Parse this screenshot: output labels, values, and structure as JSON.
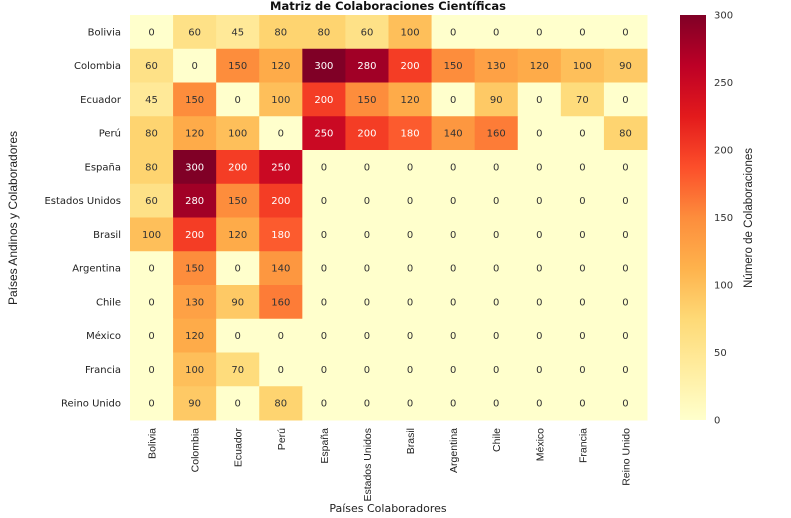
{
  "chart_data": {
    "type": "heatmap",
    "title": "Matriz de Colaboraciones Científicas",
    "xlabel": "Países Colaboradores",
    "ylabel": "Países Andinos y Colaboradores",
    "colorbar_label": "Número de Colaboraciones",
    "colormap": "YlOrRd",
    "vmin": 0,
    "vmax": 300,
    "colorbar_ticks": [
      0,
      50,
      100,
      150,
      200,
      250,
      300
    ],
    "colorbar_stops": [
      "#ffffcc",
      "#ffeda0",
      "#fed976",
      "#feb24c",
      "#fd8d3c",
      "#fc4e2a",
      "#e31a1c",
      "#bd0026",
      "#800026"
    ],
    "x_categories": [
      "Bolivia",
      "Colombia",
      "Ecuador",
      "Perú",
      "España",
      "Estados Unidos",
      "Brasil",
      "Argentina",
      "Chile",
      "México",
      "Francia",
      "Reino Unido"
    ],
    "y_categories": [
      "Bolivia",
      "Colombia",
      "Ecuador",
      "Perú",
      "España",
      "Estados Unidos",
      "Brasil",
      "Argentina",
      "Chile",
      "México",
      "Francia",
      "Reino Unido"
    ],
    "values": [
      [
        0,
        60,
        45,
        80,
        80,
        60,
        100,
        0,
        0,
        0,
        0,
        0
      ],
      [
        60,
        0,
        150,
        120,
        300,
        280,
        200,
        150,
        130,
        120,
        100,
        90
      ],
      [
        45,
        150,
        0,
        100,
        200,
        150,
        120,
        0,
        90,
        0,
        70,
        0
      ],
      [
        80,
        120,
        100,
        0,
        250,
        200,
        180,
        140,
        160,
        0,
        0,
        80
      ],
      [
        80,
        300,
        200,
        250,
        0,
        0,
        0,
        0,
        0,
        0,
        0,
        0
      ],
      [
        60,
        280,
        150,
        200,
        0,
        0,
        0,
        0,
        0,
        0,
        0,
        0
      ],
      [
        100,
        200,
        120,
        180,
        0,
        0,
        0,
        0,
        0,
        0,
        0,
        0
      ],
      [
        0,
        150,
        0,
        140,
        0,
        0,
        0,
        0,
        0,
        0,
        0,
        0
      ],
      [
        0,
        130,
        90,
        160,
        0,
        0,
        0,
        0,
        0,
        0,
        0,
        0
      ],
      [
        0,
        120,
        0,
        0,
        0,
        0,
        0,
        0,
        0,
        0,
        0,
        0
      ],
      [
        0,
        100,
        70,
        0,
        0,
        0,
        0,
        0,
        0,
        0,
        0,
        0
      ],
      [
        0,
        90,
        0,
        80,
        0,
        0,
        0,
        0,
        0,
        0,
        0,
        0
      ]
    ],
    "annotations": true,
    "grid": false
  }
}
